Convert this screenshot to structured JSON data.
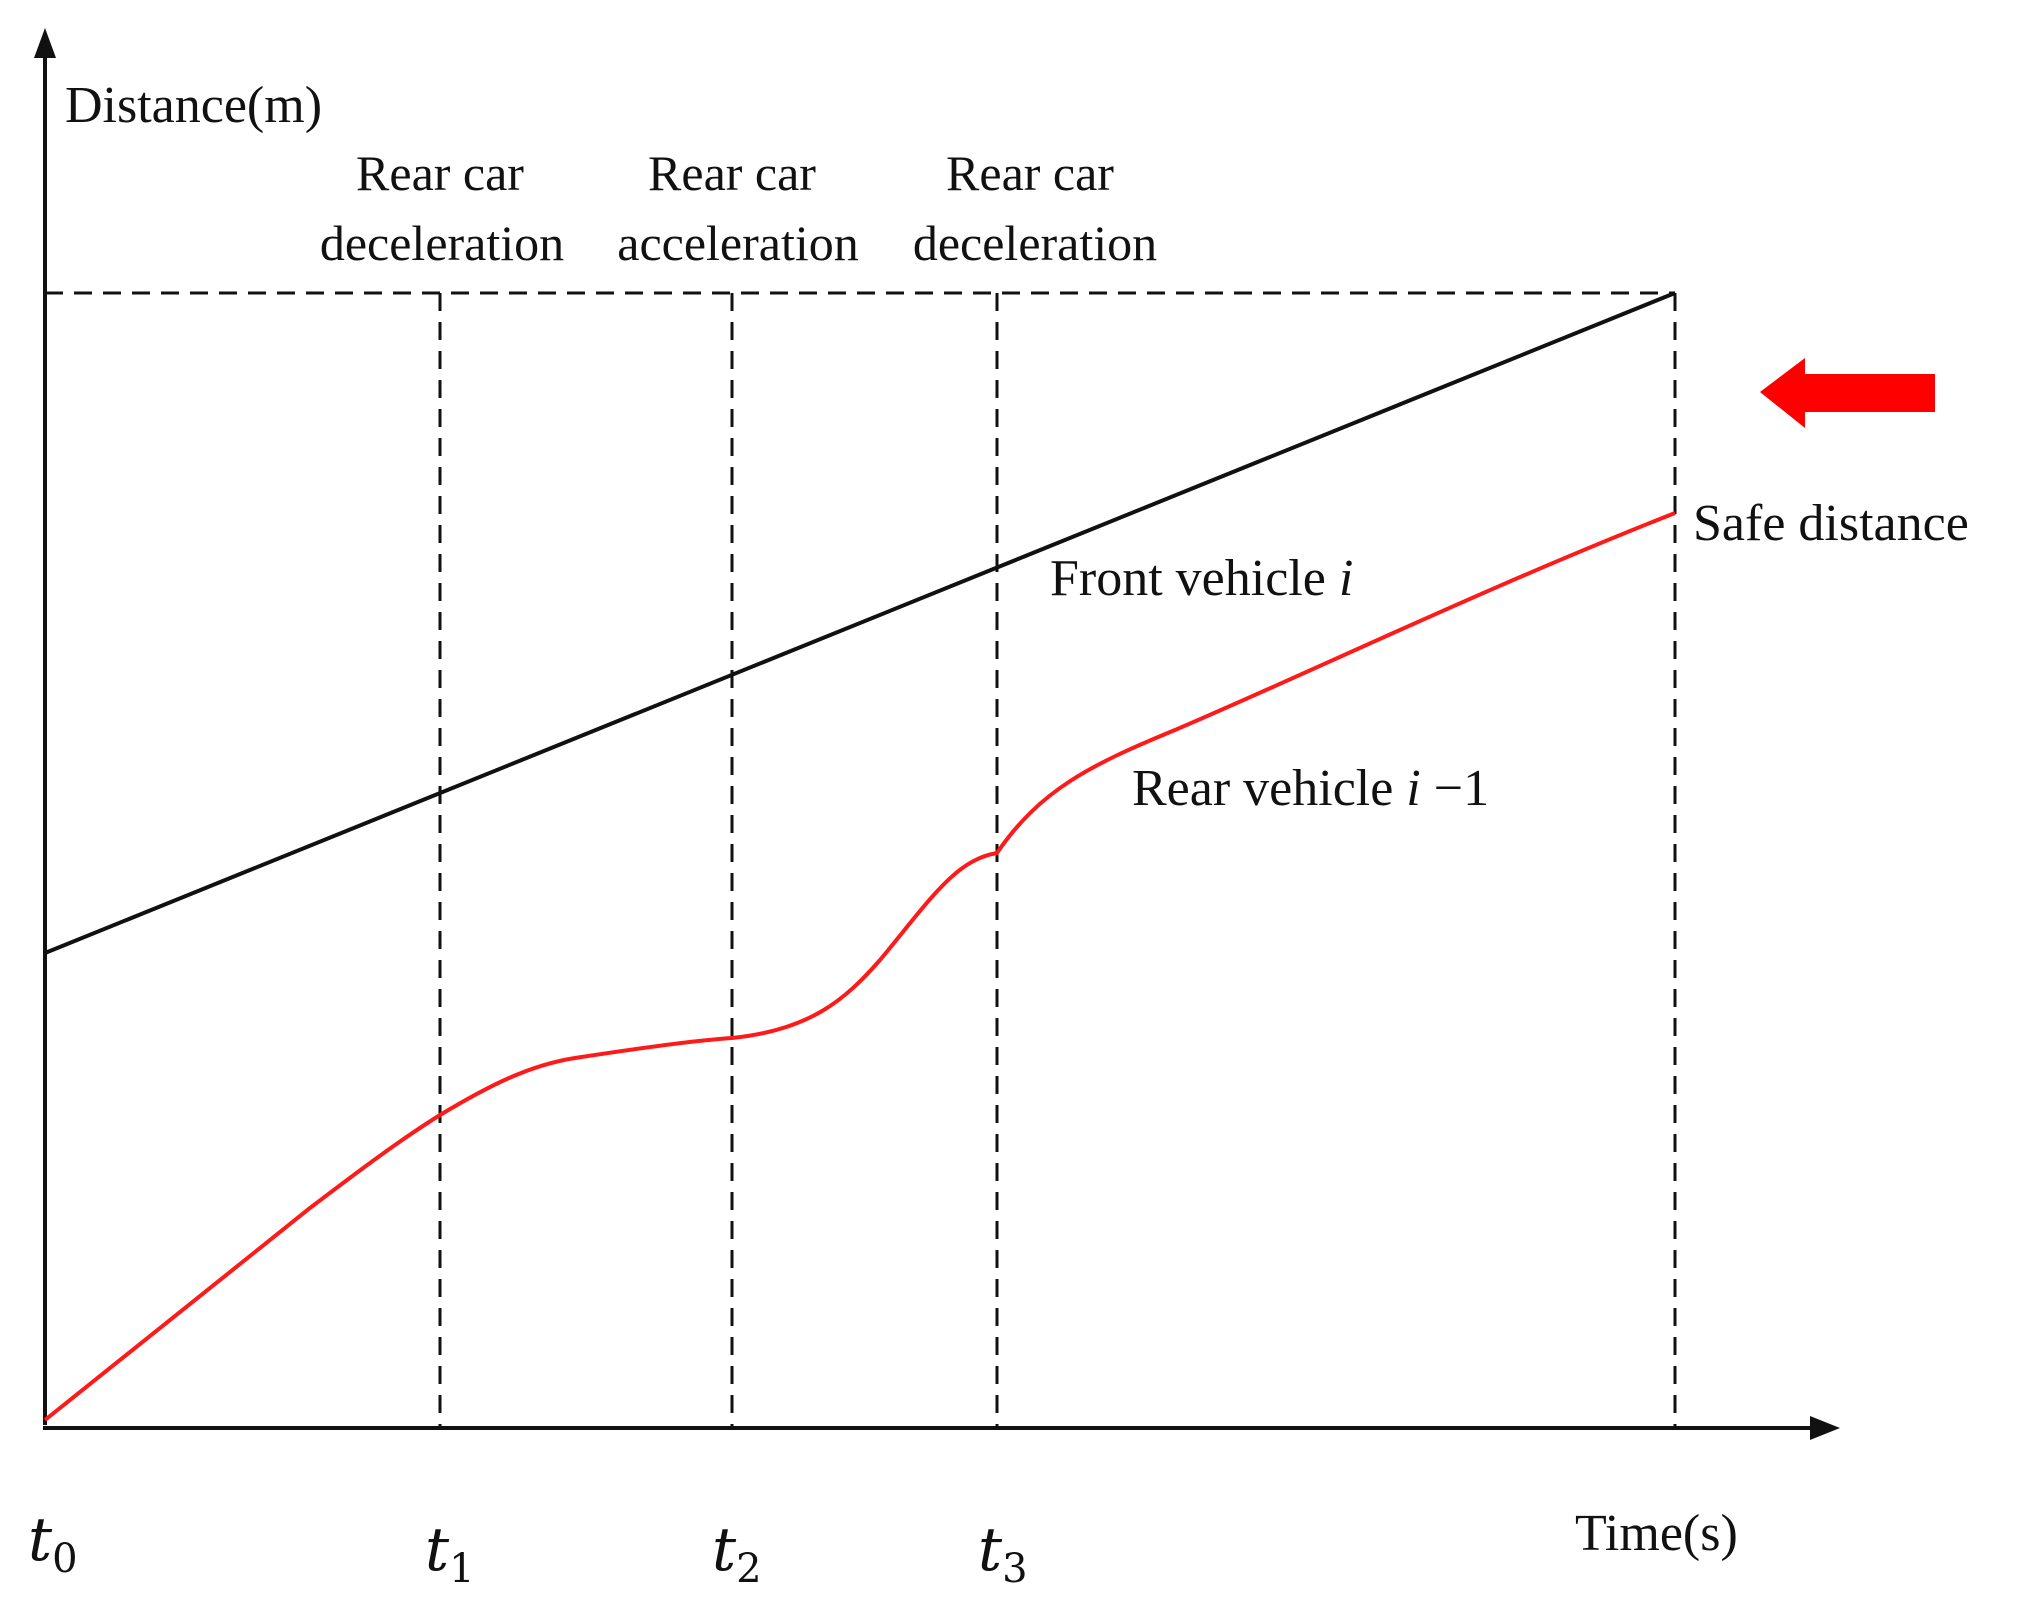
{
  "axes": {
    "y_label": "Distance(m)",
    "x_label": "Time(s)"
  },
  "time_ticks": [
    {
      "base": "t",
      "sub": "0"
    },
    {
      "base": "t",
      "sub": "1"
    },
    {
      "base": "t",
      "sub": "2"
    },
    {
      "base": "t",
      "sub": "3"
    }
  ],
  "phases": [
    {
      "line1": "Rear car",
      "line2": "deceleration"
    },
    {
      "line1": "Rear car",
      "line2": "acceleration"
    },
    {
      "line1": "Rear car",
      "line2": "deceleration"
    }
  ],
  "curves": {
    "front": {
      "label": "Front vehicle ",
      "var": "i",
      "color": "#111111"
    },
    "rear": {
      "label": "Rear vehicle ",
      "var": "i",
      "suffix": " −1",
      "color": "#ff1a1a"
    }
  },
  "safe_distance": {
    "label": "Safe distance",
    "arrow_color": "#ff0000"
  }
}
